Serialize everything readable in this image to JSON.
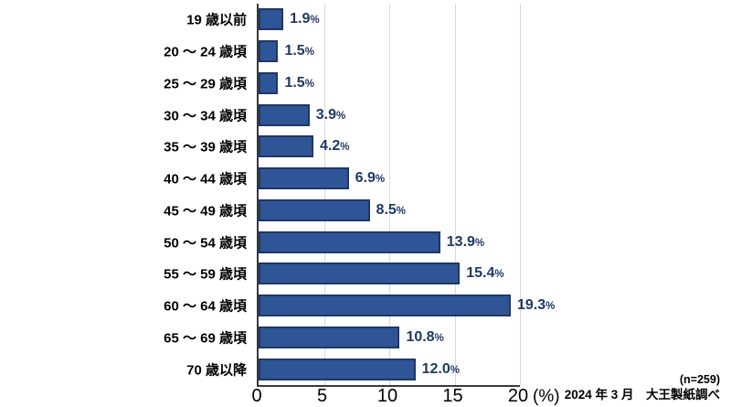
{
  "chart_data": {
    "type": "bar",
    "orientation": "horizontal",
    "title": "",
    "categories": [
      "19 歳以前",
      "20 ～ 24 歳頃",
      "25 ～ 29 歳頃",
      "30 ～ 34 歳頃",
      "35 ～ 39 歳頃",
      "40 ～ 44 歳頃",
      "45 ～ 49 歳頃",
      "50 ～ 54 歳頃",
      "55 ～ 59 歳頃",
      "60 ～ 64 歳頃",
      "65 ～ 69 歳頃",
      "70 歳以降"
    ],
    "values": [
      1.9,
      1.5,
      1.5,
      3.9,
      4.2,
      6.9,
      8.5,
      13.9,
      15.4,
      19.3,
      10.8,
      12.0
    ],
    "value_labels": [
      "1.9",
      "1.5",
      "1.5",
      "3.9",
      "4.2",
      "6.9",
      "8.5",
      "13.9",
      "15.4",
      "19.3",
      "10.8",
      "12.0"
    ],
    "value_suffix": "%",
    "xlabel": "(%)",
    "xlim": [
      0,
      20
    ],
    "xticks": [
      0,
      5,
      10,
      15,
      20
    ],
    "grid": "vertical-gridlines",
    "legend": "none",
    "colors": {
      "bar_fill": "#2f5597",
      "bar_border": "#1f3864",
      "value_label": "#1f3864",
      "gridline": "#d9d9d9",
      "axis": "#3a3a3a",
      "category_label": "#000000",
      "tick_label": "#000000"
    }
  },
  "footer": {
    "sample_size": "(n=259)",
    "source": "2024 年 3 月　大王製紙調べ"
  }
}
